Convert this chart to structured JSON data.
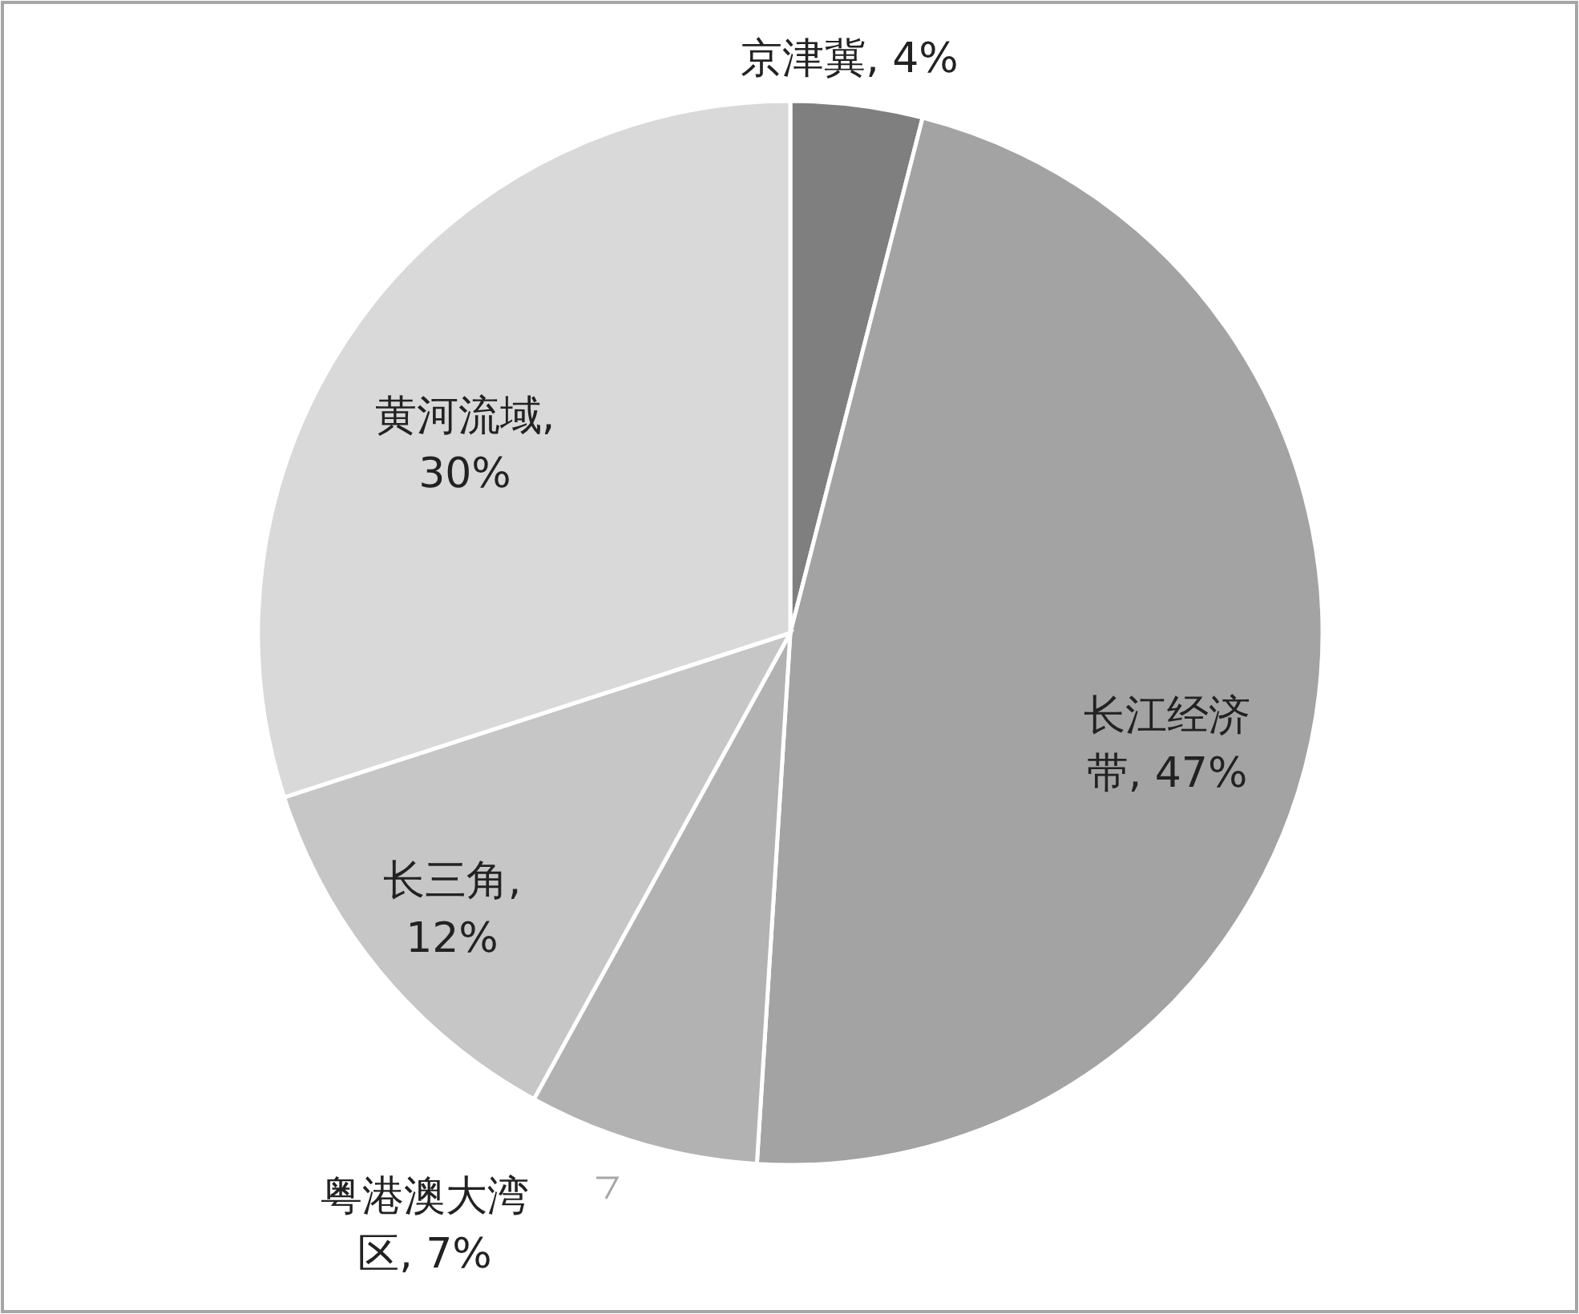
{
  "chart_data": {
    "type": "pie",
    "categories": [
      "京津冀",
      "长江经济带",
      "粤港澳大湾区",
      "长三角",
      "黄河流域"
    ],
    "values": [
      4,
      47,
      7,
      12,
      30
    ],
    "value_labels": [
      ", 4%",
      ", 47%",
      ", 7%",
      ", 12%",
      ", 30%"
    ],
    "colors": [
      "#7f7f7f",
      "#a3a3a3",
      "#b2b2b2",
      "#c6c6c6",
      "#d9d9d9"
    ]
  }
}
